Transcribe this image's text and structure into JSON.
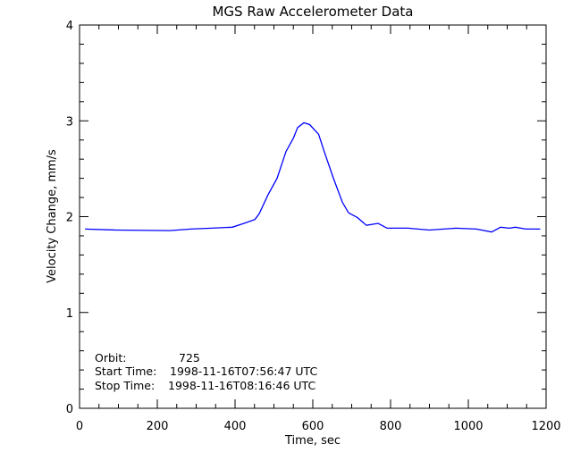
{
  "chart_data": {
    "type": "line",
    "title": "MGS Raw Accelerometer Data",
    "xlabel": "Time, sec",
    "ylabel": "Velocity Change, mm/s",
    "xlim": [
      0,
      1200
    ],
    "ylim": [
      0,
      4
    ],
    "xticks": [
      0,
      200,
      400,
      600,
      800,
      1000,
      1200
    ],
    "yticks": [
      0,
      1,
      2,
      3,
      4
    ],
    "x_minor_step": 50,
    "y_minor_step": 0.2,
    "grid": false,
    "line_color": "#0000ff",
    "series": [
      {
        "x": [
          14,
          94,
          232,
          286,
          339,
          393,
          423,
          451,
          462,
          485,
          508,
          531,
          550,
          561,
          577,
          592,
          615,
          630,
          653,
          676,
          692,
          715,
          738,
          768,
          791,
          845,
          899,
          968,
          1021,
          1060,
          1083,
          1106,
          1121,
          1148,
          1185
        ],
        "y": [
          1.87,
          1.86,
          1.855,
          1.87,
          1.88,
          1.89,
          1.93,
          1.97,
          2.03,
          2.23,
          2.4,
          2.68,
          2.82,
          2.93,
          2.98,
          2.96,
          2.86,
          2.67,
          2.4,
          2.15,
          2.04,
          1.99,
          1.91,
          1.93,
          1.88,
          1.88,
          1.86,
          1.88,
          1.87,
          1.84,
          1.89,
          1.88,
          1.89,
          1.87,
          1.87
        ]
      }
    ],
    "annotations": [
      {
        "label": "Orbit:",
        "value": "725"
      },
      {
        "label": "Start Time:",
        "value": "1998-11-16T07:56:47 UTC"
      },
      {
        "label": "Stop Time:",
        "value": "1998-11-16T08:16:46 UTC"
      }
    ]
  }
}
